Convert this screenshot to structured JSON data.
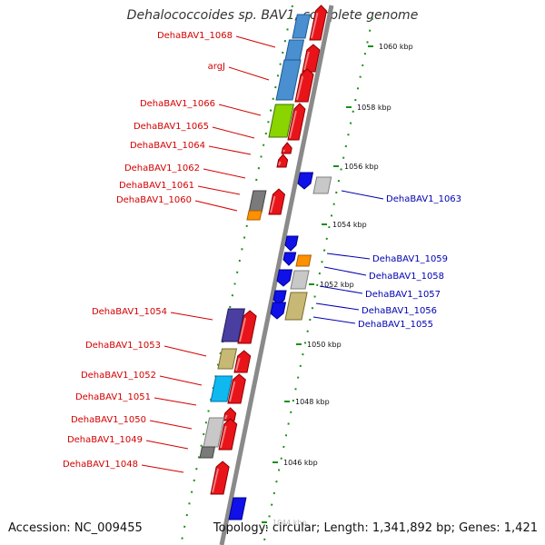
{
  "header": {
    "title": "Dehalococcoides sp. BAV1, complete genome"
  },
  "footer": {
    "accession": "Accession: NC_009455",
    "stats": "Topology: circular; Length: 1,341,892 bp; Genes: 1,421"
  },
  "colors": {
    "label_plus_strand": "#d40000",
    "label_minus_strand": "#0000b0",
    "backbone": "#8a8a8a",
    "ticks": "#1a8f1a"
  },
  "scale_ticks": [
    "1060 kbp",
    "1058 kbp",
    "1056 kbp",
    "1054 kbp",
    "1052 kbp",
    "1050 kbp",
    "1048 kbp",
    "1046 kbp",
    "1044 kbp"
  ],
  "genes_left": [
    "DehaBAV1_1068",
    "argJ",
    "DehaBAV1_1066",
    "DehaBAV1_1065",
    "DehaBAV1_1064",
    "DehaBAV1_1062",
    "DehaBAV1_1061",
    "DehaBAV1_1060",
    "DehaBAV1_1054",
    "DehaBAV1_1053",
    "DehaBAV1_1052",
    "DehaBAV1_1051",
    "DehaBAV1_1050",
    "DehaBAV1_1049",
    "DehaBAV1_1048"
  ],
  "genes_right": [
    "DehaBAV1_1063",
    "DehaBAV1_1059",
    "DehaBAV1_1058",
    "DehaBAV1_1057",
    "DehaBAV1_1056",
    "DehaBAV1_1055"
  ]
}
